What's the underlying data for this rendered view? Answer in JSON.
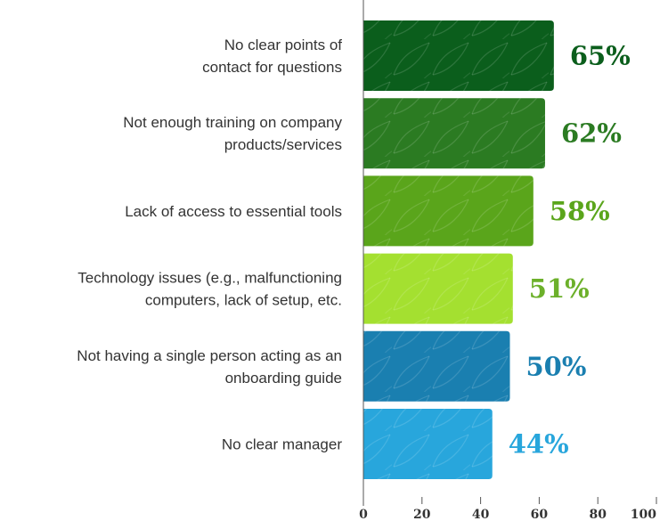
{
  "chart_data": {
    "type": "bar",
    "orientation": "horizontal",
    "categories": [
      [
        "No clear points of",
        "contact for questions"
      ],
      [
        "Not enough training on company",
        "products/services"
      ],
      [
        "Lack of access to essential tools"
      ],
      [
        "Technology issues (e.g., malfunctioning",
        "computers, lack of setup, etc."
      ],
      [
        "Not having a single person acting as an",
        "onboarding guide"
      ],
      [
        "No clear manager"
      ]
    ],
    "values": [
      65,
      62,
      58,
      51,
      50,
      44
    ],
    "value_labels": [
      "65%",
      "62%",
      "58%",
      "51%",
      "50%",
      "44%"
    ],
    "bar_colors": [
      "#0b5e1c",
      "#2b7b22",
      "#5aa51b",
      "#a4e030",
      "#1a7fb0",
      "#28a6dc"
    ],
    "label_colors": [
      "#0b5e1c",
      "#2b7b22",
      "#5aa51b",
      "#6cb02a",
      "#1a7fb0",
      "#28a6dc"
    ],
    "xlim": [
      0,
      100
    ],
    "xticks": [
      0,
      20,
      40,
      60,
      80,
      100
    ],
    "title": "",
    "xlabel": "",
    "ylabel": "",
    "grid": false,
    "legend": "none"
  }
}
